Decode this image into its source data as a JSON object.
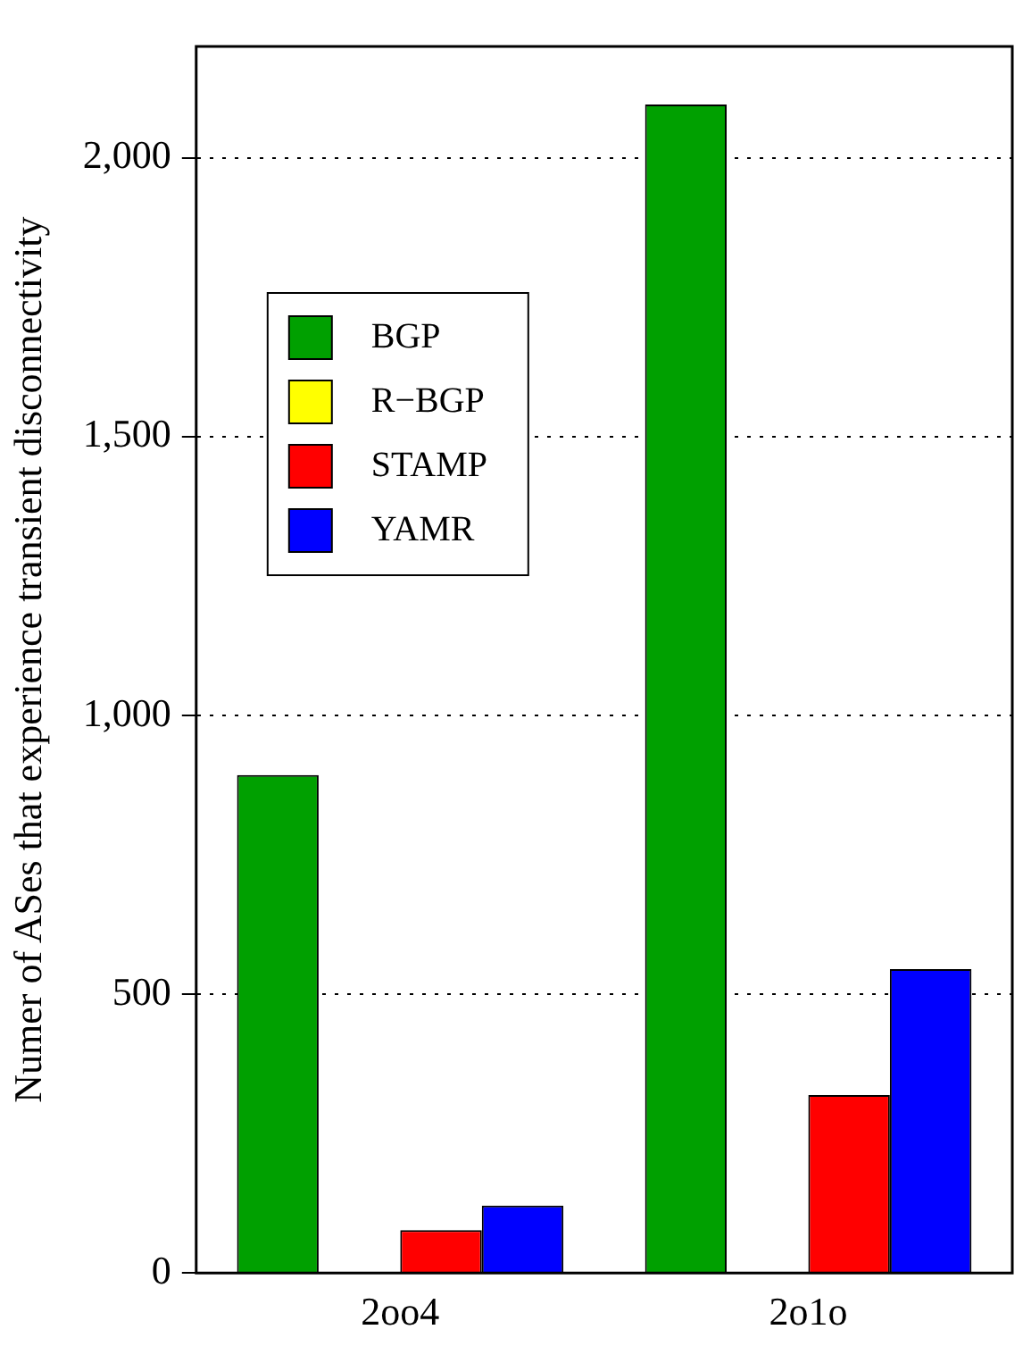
{
  "chart_data": {
    "type": "bar",
    "ylabel": "Numer of ASes that experience transient disconnectivity",
    "categories": [
      "2oo4",
      "2o1o"
    ],
    "series": [
      {
        "name": "BGP",
        "color": "#00a000",
        "values": [
          893,
          2096
        ]
      },
      {
        "name": "R−BGP",
        "color": "#ffff00",
        "values": [
          0,
          0
        ]
      },
      {
        "name": "STAMP",
        "color": "#ff0000",
        "values": [
          77,
          319
        ]
      },
      {
        "name": "YAMR",
        "color": "#0000ff",
        "values": [
          121,
          545
        ]
      }
    ],
    "ylim": [
      0,
      2200
    ],
    "yticks": [
      0,
      500,
      {
        "value": 1000,
        "label": "1,000"
      },
      {
        "value": 1500,
        "label": "1,500"
      },
      {
        "value": 2000,
        "label": "2,000"
      }
    ],
    "grid": "y",
    "line_style": "dotted",
    "legend": "top left"
  }
}
